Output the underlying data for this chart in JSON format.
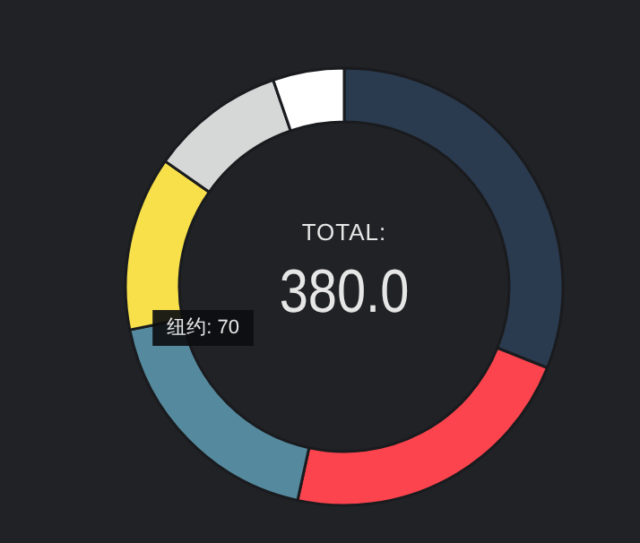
{
  "chart_data": {
    "type": "donut",
    "title": "TOTAL:",
    "annotations": [
      "380.0"
    ],
    "categories": [
      null,
      null,
      "纽约",
      null,
      null,
      null
    ],
    "values": [
      118,
      85,
      70,
      49,
      38,
      20
    ],
    "colors": [
      "#2b3b4f",
      "#fc444e",
      "#558a9e",
      "#f7e04a",
      "#d6d8d8",
      "#ffffff"
    ],
    "value_labels": [
      null,
      null,
      "70",
      null,
      null,
      null
    ]
  }
}
